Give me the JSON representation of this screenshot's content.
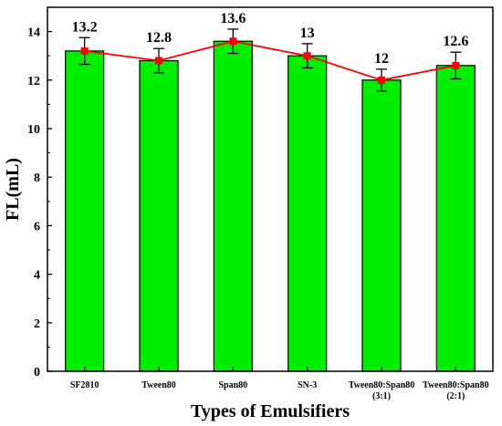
{
  "chart_data": {
    "type": "bar",
    "title": "",
    "xlabel": "Types of Emulsifiers",
    "ylabel": "FL(mL)",
    "categories": [
      [
        "SF2810"
      ],
      [
        "Tween80"
      ],
      [
        "Span80"
      ],
      [
        "SN-3"
      ],
      [
        "Tween80:Span80",
        "(3:1)"
      ],
      [
        "Tween80:Span80",
        "(2:1)"
      ]
    ],
    "values": [
      13.2,
      12.8,
      13.6,
      13,
      12,
      12.6
    ],
    "errors": [
      0.55,
      0.5,
      0.5,
      0.5,
      0.45,
      0.55
    ],
    "data_labels": [
      "13.2",
      "12.8",
      "13.6",
      "13",
      "12",
      "12.6"
    ],
    "ylim": [
      0,
      15
    ],
    "yticks": [
      0,
      2,
      4,
      6,
      8,
      10,
      12,
      14
    ],
    "grid": false,
    "line_overlay": true,
    "colors": {
      "bar_fill": "#00ee00",
      "bar_stroke": "#000000",
      "line": "#ff0000",
      "marker": "#ff0000",
      "error_bar": "#000000"
    }
  }
}
